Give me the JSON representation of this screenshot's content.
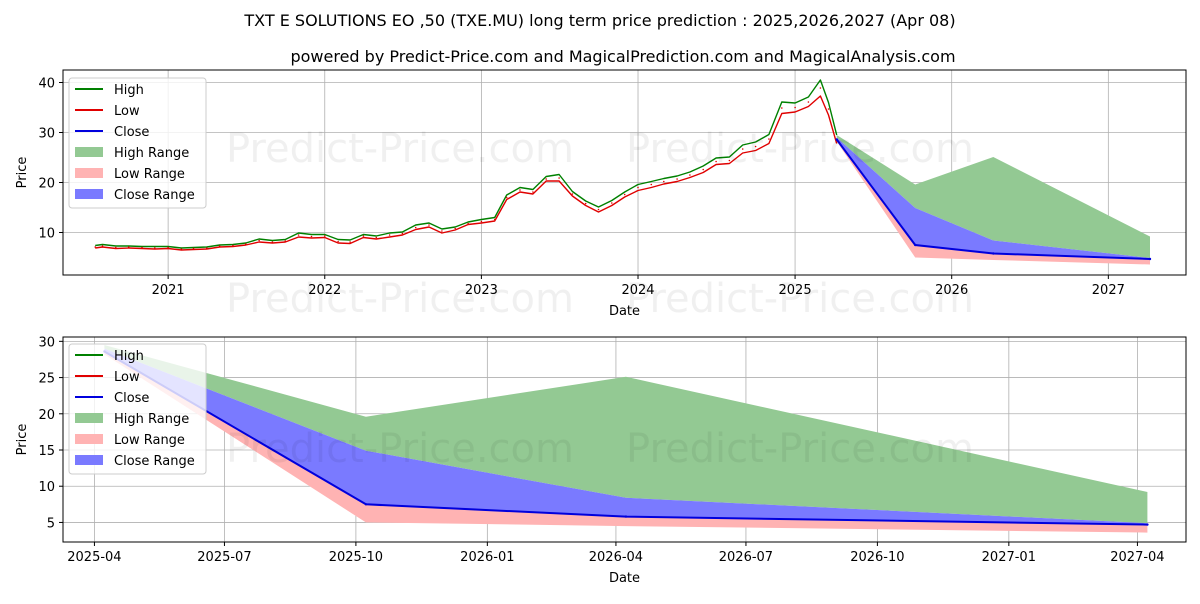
{
  "title": "TXT E SOLUTIONS EO ,50 (TXE.MU) long term price prediction : 2025,2026,2027 (Apr 08)",
  "subtitle": "powered by Predict-Price.com and MagicalPrediction.com and MagicalAnalysis.com",
  "watermark": "Predict-Price.com",
  "colors": {
    "high": "#008000",
    "low": "#e00000",
    "close": "#0000dd",
    "high_range": "#93c993",
    "low_range": "#ffb3b3",
    "close_range": "#7a7aff",
    "grid": "#b0b0b0"
  },
  "legend": {
    "items": [
      {
        "label": "High",
        "kind": "line",
        "color_key": "high"
      },
      {
        "label": "Low",
        "kind": "line",
        "color_key": "low"
      },
      {
        "label": "Close",
        "kind": "line",
        "color_key": "close"
      },
      {
        "label": "High Range",
        "kind": "patch",
        "color_key": "high_range"
      },
      {
        "label": "Low Range",
        "kind": "patch",
        "color_key": "low_range"
      },
      {
        "label": "Close Range",
        "kind": "patch",
        "color_key": "close_range"
      }
    ]
  },
  "chart_data": [
    {
      "type": "line",
      "xlabel": "Date",
      "ylabel": "Price",
      "xlim": [
        "2020-05-01",
        "2027-07-01"
      ],
      "ylim": [
        1.5,
        42.5
      ],
      "x_ticks": [
        "2021",
        "2022",
        "2023",
        "2024",
        "2025",
        "2026",
        "2027"
      ],
      "x_tick_dates": [
        "2021-01-01",
        "2022-01-01",
        "2023-01-01",
        "2024-01-01",
        "2025-01-01",
        "2026-01-01",
        "2027-01-01"
      ],
      "y_ticks": [
        10,
        20,
        30,
        40
      ],
      "grid": true,
      "legend_position": "upper-left",
      "history": {
        "dates": [
          "2020-07-15",
          "2020-08-01",
          "2020-09-01",
          "2020-10-01",
          "2020-11-01",
          "2020-12-01",
          "2021-01-01",
          "2021-02-01",
          "2021-03-01",
          "2021-04-01",
          "2021-05-01",
          "2021-06-01",
          "2021-07-01",
          "2021-08-01",
          "2021-09-01",
          "2021-10-01",
          "2021-11-01",
          "2021-12-01",
          "2022-01-01",
          "2022-02-01",
          "2022-03-01",
          "2022-04-01",
          "2022-05-01",
          "2022-06-01",
          "2022-07-01",
          "2022-08-01",
          "2022-09-01",
          "2022-10-01",
          "2022-11-01",
          "2022-12-01",
          "2023-01-01",
          "2023-02-01",
          "2023-03-01",
          "2023-04-01",
          "2023-05-01",
          "2023-06-01",
          "2023-07-01",
          "2023-08-01",
          "2023-09-01",
          "2023-10-01",
          "2023-11-01",
          "2023-12-01",
          "2024-01-01",
          "2024-02-01",
          "2024-03-01",
          "2024-04-01",
          "2024-05-01",
          "2024-06-01",
          "2024-07-01",
          "2024-08-01",
          "2024-09-01",
          "2024-10-01",
          "2024-11-01",
          "2024-12-01",
          "2025-01-01",
          "2025-02-01",
          "2025-03-01",
          "2025-03-20",
          "2025-04-08"
        ],
        "high": [
          7.4,
          7.6,
          7.3,
          7.3,
          7.2,
          7.2,
          7.2,
          6.9,
          7.0,
          7.1,
          7.5,
          7.6,
          7.9,
          8.7,
          8.4,
          8.6,
          9.9,
          9.6,
          9.6,
          8.6,
          8.5,
          9.6,
          9.3,
          9.9,
          10.1,
          11.5,
          11.9,
          10.7,
          11.1,
          12.1,
          12.6,
          13.0,
          17.5,
          19.0,
          18.6,
          21.2,
          21.6,
          18.2,
          16.3,
          15.1,
          16.4,
          18.1,
          19.6,
          20.2,
          20.8,
          21.3,
          22.1,
          23.3,
          24.9,
          25.1,
          27.5,
          28.1,
          29.6,
          36.1,
          35.9,
          37.1,
          40.5,
          36.0,
          29.5
        ],
        "low": [
          6.9,
          7.1,
          6.8,
          6.9,
          6.8,
          6.7,
          6.8,
          6.5,
          6.6,
          6.7,
          7.1,
          7.2,
          7.5,
          8.1,
          7.9,
          8.1,
          9.1,
          8.9,
          9.0,
          7.9,
          7.8,
          9.0,
          8.7,
          9.1,
          9.5,
          10.6,
          11.1,
          9.9,
          10.5,
          11.6,
          11.9,
          12.3,
          16.6,
          18.1,
          17.7,
          20.3,
          20.3,
          17.3,
          15.4,
          14.1,
          15.4,
          17.1,
          18.4,
          19.0,
          19.7,
          20.2,
          21.0,
          22.0,
          23.6,
          23.8,
          25.9,
          26.4,
          27.8,
          33.8,
          34.1,
          35.2,
          37.3,
          33.5,
          27.8
        ],
        "close": [
          7.1,
          7.3,
          7.0,
          7.1,
          7.0,
          6.9,
          7.0,
          6.7,
          6.8,
          6.9,
          7.3,
          7.4,
          7.7,
          8.4,
          8.1,
          8.3,
          9.5,
          9.2,
          9.3,
          8.2,
          8.1,
          9.3,
          9.0,
          9.5,
          9.8,
          11.0,
          11.5,
          10.3,
          10.8,
          11.8,
          12.2,
          12.6,
          17.0,
          18.5,
          18.1,
          20.7,
          20.9,
          17.7,
          15.8,
          14.6,
          15.9,
          17.6,
          19.0,
          19.6,
          20.2,
          20.7,
          21.5,
          22.6,
          24.2,
          24.4,
          26.7,
          27.2,
          28.7,
          34.9,
          35.0,
          36.1,
          38.9,
          34.7,
          28.6
        ]
      },
      "forecast": {
        "dates": [
          "2025-04-08",
          "2025-10-08",
          "2026-04-08",
          "2027-04-08"
        ],
        "high_range_upper": [
          29.5,
          19.6,
          25.1,
          9.2
        ],
        "close_range_upper": [
          29.0,
          14.9,
          8.4,
          4.9
        ],
        "close": [
          28.6,
          7.5,
          5.8,
          4.7
        ],
        "low_range_lower": [
          28.2,
          5.0,
          4.5,
          3.6
        ]
      }
    },
    {
      "type": "line",
      "xlabel": "Date",
      "ylabel": "Price",
      "xlim": [
        "2025-03-10",
        "2027-05-05"
      ],
      "ylim": [
        2.3,
        30.6
      ],
      "x_ticks": [
        "2025-04",
        "2025-07",
        "2025-10",
        "2026-01",
        "2026-04",
        "2026-07",
        "2026-10",
        "2027-01",
        "2027-04"
      ],
      "x_tick_dates": [
        "2025-04-01",
        "2025-07-01",
        "2025-10-01",
        "2026-01-01",
        "2026-04-01",
        "2026-07-01",
        "2026-10-01",
        "2027-01-01",
        "2027-04-01"
      ],
      "y_ticks": [
        5,
        10,
        15,
        20,
        25,
        30
      ],
      "grid": true,
      "legend_position": "upper-left",
      "forecast": {
        "dates": [
          "2025-04-08",
          "2025-10-08",
          "2026-04-08",
          "2027-04-08"
        ],
        "high_range_upper": [
          29.5,
          19.6,
          25.1,
          9.2
        ],
        "close_range_upper": [
          29.0,
          14.9,
          8.4,
          4.9
        ],
        "close": [
          28.6,
          7.5,
          5.8,
          4.7
        ],
        "low_range_lower": [
          28.2,
          5.0,
          4.5,
          3.6
        ]
      }
    }
  ]
}
